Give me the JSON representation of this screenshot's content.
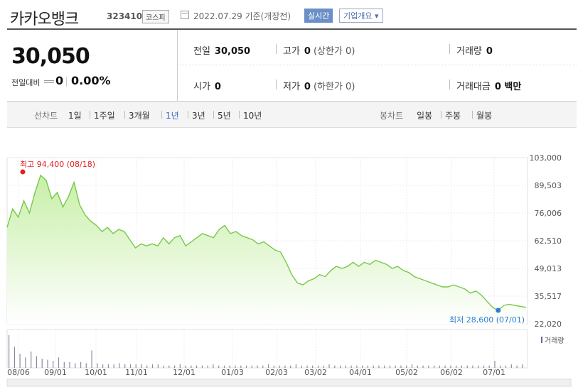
{
  "header": {
    "name": "카카오뱅크",
    "code": "323410",
    "market": "코스피",
    "date": "2022.07.29 기준(개장전)",
    "realtime": "실시간",
    "company_info": "기업개요"
  },
  "summary": {
    "price": "30,050",
    "change_label": "전일대비",
    "change": "0",
    "change_rate": "0.00%",
    "prev_label": "전일",
    "prev": "30,050",
    "high_label": "고가",
    "high": "0",
    "high_sub": "(상한가 0)",
    "volume_label": "거래량",
    "volume": "0",
    "open_label": "시가",
    "open": "0",
    "low_label": "저가",
    "low": "0",
    "low_sub": "(하한가 0)",
    "amount_label": "거래대금",
    "amount": "0 백만"
  },
  "nav": {
    "line_chart_label": "선차트",
    "periods": [
      "1일",
      "1주일",
      "3개월",
      "1년",
      "3년",
      "5년",
      "10년"
    ],
    "active_period": "1년",
    "candle_chart_label": "봉차트",
    "candles": [
      "일봉",
      "주봉",
      "월봉"
    ]
  },
  "chart_data": {
    "type": "area",
    "yticks": [
      "103,000",
      "89,503",
      "76,006",
      "62,510",
      "49,013",
      "35,517",
      "22,020"
    ],
    "ylim": [
      22020,
      103000
    ],
    "xticks": [
      "08/06",
      "09/01",
      "10/01",
      "11/01",
      "12/01",
      "01/03",
      "02/03",
      "03/02",
      "04/01",
      "05/02",
      "06/02",
      "07/01"
    ],
    "max_label": "최고 94,400 (08/18)",
    "min_label": "최저 28,600 (07/01)",
    "volume_label": "거래량",
    "colors": {
      "line": "#77c84a",
      "fill_top": "#c8efa8",
      "fill_bottom": "#ffffff",
      "max": "#e02020",
      "min": "#2a7fd0"
    },
    "series": [
      {
        "values": [
          69000,
          78000,
          74000,
          82000,
          76000,
          86000,
          94400,
          92000,
          83000,
          86000,
          79000,
          84000,
          91000,
          80000,
          75000,
          72000,
          70000,
          67000,
          69000,
          66000,
          68000,
          67000,
          63000,
          59000,
          61000,
          60000,
          61000,
          60000,
          64000,
          61000,
          64000,
          65000,
          60000,
          62000,
          64000,
          66000,
          65000,
          64000,
          68000,
          70000,
          66000,
          67000,
          65000,
          64000,
          63000,
          61000,
          62000,
          60000,
          58000,
          57000,
          52000,
          46000,
          42000,
          41000,
          43000,
          44000,
          46000,
          45000,
          48000,
          50000,
          49000,
          50000,
          52000,
          50000,
          52000,
          51000,
          53000,
          52000,
          51000,
          49000,
          50000,
          48000,
          47000,
          45000,
          44000,
          43000,
          42000,
          41000,
          40000,
          40000,
          41000,
          40000,
          39000,
          37000,
          38000,
          36000,
          33000,
          30000,
          28600,
          31000,
          31500,
          31000,
          30500,
          30050
        ]
      }
    ],
    "volume": [
      28,
      18,
      12,
      9,
      14,
      10,
      8,
      7,
      6,
      9,
      5,
      5,
      4,
      5,
      4,
      15,
      4,
      3,
      3,
      3,
      4,
      3,
      3,
      3,
      3,
      2,
      3,
      3,
      2,
      2,
      2,
      3,
      2,
      2,
      2,
      2,
      2,
      3,
      2,
      2,
      2,
      2,
      2,
      2,
      2,
      2,
      2,
      3,
      2,
      2,
      2,
      2,
      3,
      2,
      2,
      2,
      2,
      2,
      3,
      2,
      2,
      2,
      2,
      2,
      2,
      2,
      2,
      2,
      2,
      2,
      2,
      2,
      2,
      3,
      2,
      2,
      2,
      2,
      2,
      2,
      2,
      2,
      2,
      2,
      2,
      2,
      2,
      2,
      6,
      2,
      2,
      3,
      2,
      3
    ]
  }
}
